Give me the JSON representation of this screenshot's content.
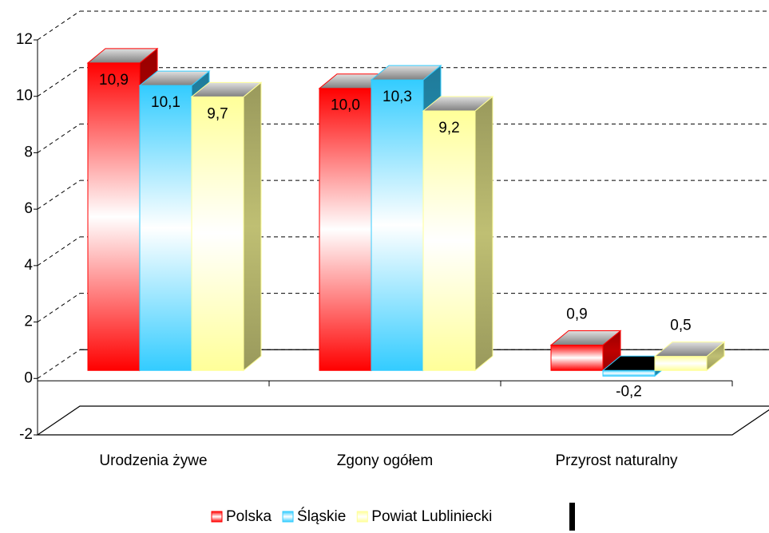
{
  "chart_data": {
    "type": "bar3d",
    "categories": [
      "Urodzenia żywe",
      "Zgony ogółem",
      "Przyrost naturalny"
    ],
    "series": [
      {
        "name": "Polska",
        "color": "#ff0000",
        "values": [
          10.9,
          10.0,
          0.9
        ],
        "value_labels": [
          "10,9",
          "10,0",
          "0,9"
        ]
      },
      {
        "name": "Śląskie",
        "color": "#33ccff",
        "values": [
          10.1,
          10.3,
          -0.2
        ],
        "value_labels": [
          "10,1",
          "10,3",
          "-0,2"
        ]
      },
      {
        "name": "Powiat Lubliniecki",
        "color": "#ffff99",
        "values": [
          9.7,
          9.2,
          0.5
        ],
        "value_labels": [
          "9,7",
          "9,2",
          "0,5"
        ]
      }
    ],
    "ylim": [
      -2,
      12
    ],
    "yticks": [
      -2,
      0,
      2,
      4,
      6,
      8,
      10,
      12
    ],
    "grid": true,
    "legend": "bottom"
  }
}
